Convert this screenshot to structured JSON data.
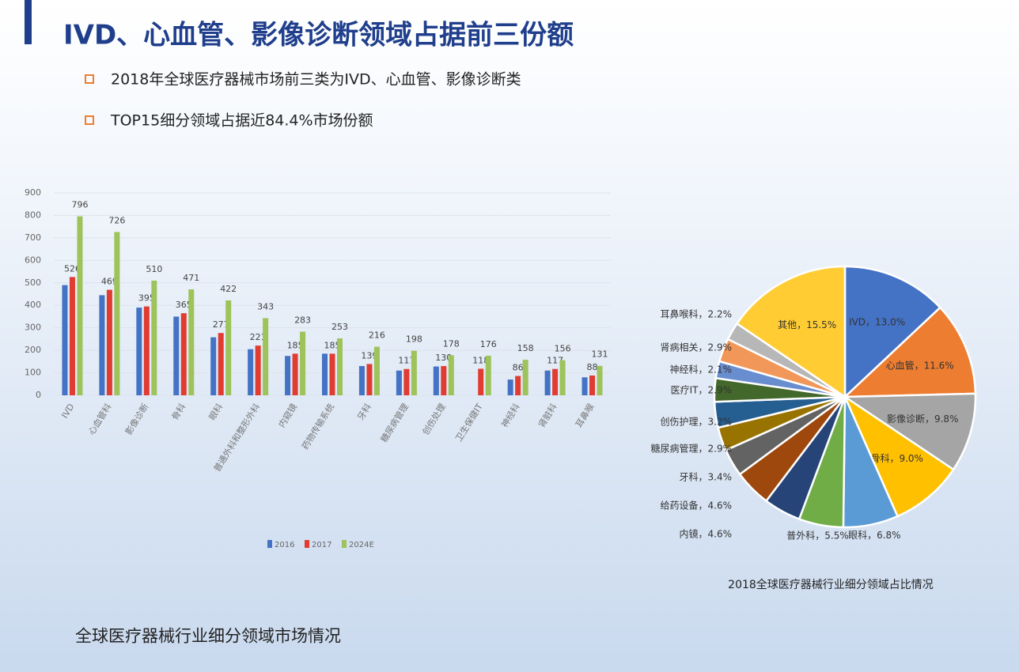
{
  "header": {
    "title": "IVD、心血管、影像诊断领域占据前三份额",
    "bullets": [
      "2018年全球医疗器械市场前三类为IVD、心血管、影像诊断类",
      "TOP15细分领域占据近84.4%市场份额"
    ]
  },
  "chart_data": [
    {
      "type": "bar",
      "caption": "全球医疗器械行业细分领域市场情况",
      "categories": [
        "IVD",
        "心血管科",
        "影像诊断",
        "骨科",
        "眼科",
        "普通外科和整形外科",
        "内窥镜",
        "药物传输系统",
        "牙科",
        "糖尿病管理",
        "创伤处理",
        "卫生保健IT",
        "神经科",
        "肾脏科",
        "耳鼻喉"
      ],
      "series": [
        {
          "name": "2016",
          "color": "#4472c4",
          "values": [
            490,
            445,
            390,
            350,
            258,
            205,
            175,
            185,
            130,
            110,
            128,
            null,
            70,
            110,
            80
          ]
        },
        {
          "name": "2017",
          "color": "#e03c31",
          "labels": true,
          "values": [
            526,
            469,
            395,
            365,
            277,
            221,
            185,
            185,
            139,
            117,
            130,
            118,
            86,
            117,
            88
          ]
        },
        {
          "name": "2024E",
          "color": "#9dc35a",
          "labels": true,
          "values": [
            796,
            726,
            510,
            471,
            422,
            343,
            283,
            253,
            216,
            198,
            178,
            176,
            158,
            156,
            131
          ]
        }
      ],
      "ylim": [
        0,
        900
      ],
      "yticks": [
        0,
        100,
        200,
        300,
        400,
        500,
        600,
        700,
        800,
        900
      ],
      "grid": true,
      "legend": "bottom"
    },
    {
      "type": "pie",
      "caption": "2018全球医疗器械行业细分领域占比情况",
      "values": [
        13.0,
        11.6,
        9.8,
        9.0,
        6.8,
        5.5,
        4.6,
        4.6,
        3.4,
        2.9,
        3.2,
        2.9,
        2.1,
        2.9,
        2.2,
        15.5
      ],
      "value_labels": [
        "IVD，13.0%",
        "心血管，11.6%",
        "影像诊断，9.8%",
        "骨科，9.0%",
        "眼科，6.8%",
        "普外科，5.5%",
        "内镜，4.6%",
        "给药设备，4.6%",
        "牙科，3.4%",
        "糖尿病管理，2.9%",
        "创伤护理，3.2%",
        "医疗IT，2.9%",
        "神经科，2.1%",
        "肾病相关，2.9%",
        "耳鼻喉科，2.2%",
        "其他，15.5%"
      ],
      "colors": [
        "#4472c4",
        "#ed7d31",
        "#a5a5a5",
        "#ffc000",
        "#5b9bd5",
        "#70ad47",
        "#264478",
        "#9e480e",
        "#636363",
        "#997300",
        "#255e91",
        "#43682b",
        "#698ed0",
        "#f1975a",
        "#b7b7b7",
        "#ffcd33"
      ]
    }
  ]
}
